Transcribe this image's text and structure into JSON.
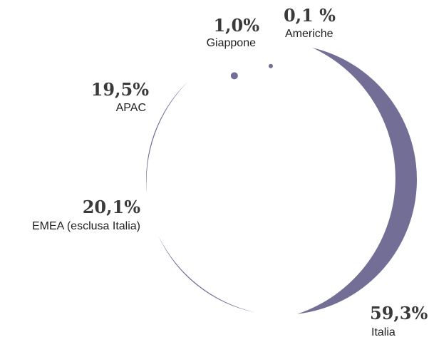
{
  "chart_data": {
    "type": "pie",
    "style": "crescent-arcs",
    "color": "#726e95",
    "slices": [
      {
        "label": "Italia",
        "value_text": "59,3%",
        "value": 59.3
      },
      {
        "label": "EMEA (esclusa Italia)",
        "value_text": "20,1%",
        "value": 20.1
      },
      {
        "label": "APAC",
        "value_text": "19,5%",
        "value": 19.5
      },
      {
        "label": "Giappone",
        "value_text": "1,0%",
        "value": 1.0
      },
      {
        "label": "Americhe",
        "value_text": "0,1 %",
        "value": 0.1
      }
    ]
  }
}
